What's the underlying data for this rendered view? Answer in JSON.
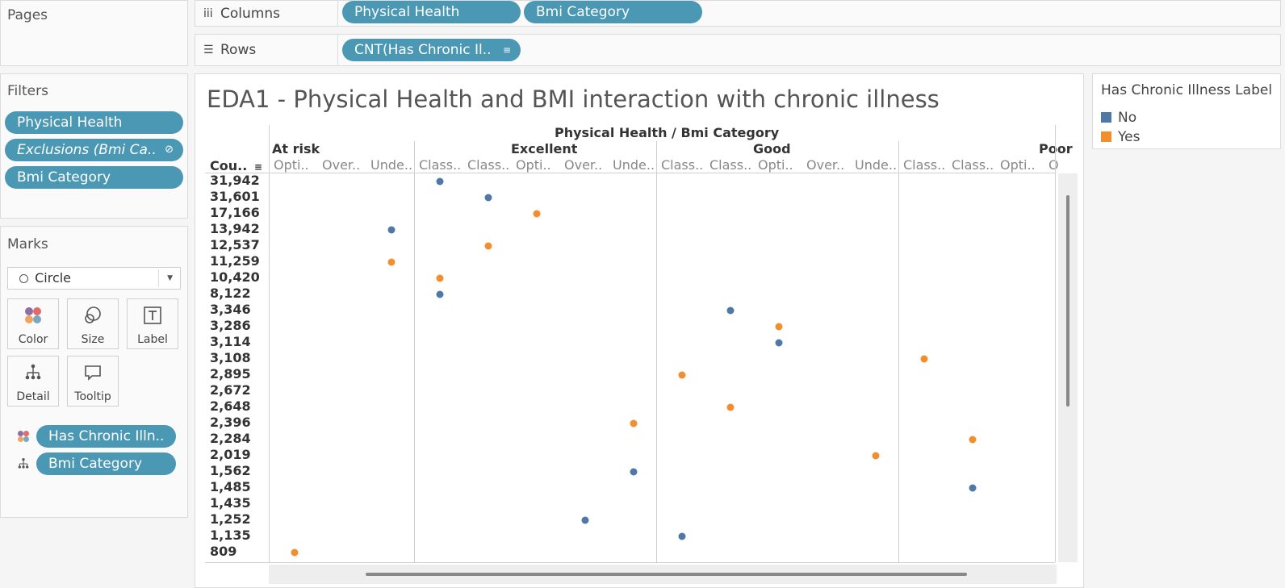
{
  "pages": {
    "title": "Pages"
  },
  "columns": {
    "label": "Columns",
    "pills": [
      "Physical Health",
      "Bmi Category"
    ]
  },
  "rows": {
    "label": "Rows",
    "pill": "CNT(Has Chronic Il.."
  },
  "filters": {
    "title": "Filters",
    "pills": [
      "Physical Health",
      "Exclusions (Bmi Ca..",
      "Bmi Category"
    ]
  },
  "marks": {
    "title": "Marks",
    "type": "Circle",
    "cards": [
      "Color",
      "Size",
      "Label",
      "Detail",
      "Tooltip"
    ],
    "pills": [
      "Has Chronic Illn..",
      "Bmi Category"
    ]
  },
  "legend": {
    "title": "Has Chronic Illness Label",
    "items": [
      {
        "label": "No",
        "color": "#4e79a7"
      },
      {
        "label": "Yes",
        "color": "#f28e2b"
      }
    ]
  },
  "chart_data": {
    "type": "scatter",
    "title": "EDA1 - Physical Health and BMI interaction with chronic illness",
    "column_header": "Physical Health  /  Bmi Category",
    "y_header": "Cou..",
    "groups": [
      {
        "name": "At risk",
        "subs": [
          "Opti..",
          "Over..",
          "Unde.."
        ]
      },
      {
        "name": "Excellent",
        "subs": [
          "Class..",
          "Class..",
          "Opti..",
          "Over..",
          "Unde.."
        ]
      },
      {
        "name": "Good",
        "subs": [
          "Class..",
          "Class..",
          "Opti..",
          "Over..",
          "Unde.."
        ]
      },
      {
        "name": "Poor",
        "subs": [
          "Class..",
          "Class..",
          "Opti..",
          "O"
        ]
      }
    ],
    "y_ticks": [
      "31,942",
      "31,601",
      "17,166",
      "13,942",
      "12,537",
      "11,259",
      "10,420",
      "8,122",
      "3,346",
      "3,286",
      "3,114",
      "3,108",
      "2,895",
      "2,672",
      "2,648",
      "2,396",
      "2,284",
      "2,019",
      "1,562",
      "1,485",
      "1,435",
      "1,252",
      "1,135",
      "809"
    ],
    "points": [
      {
        "col": 4,
        "y": "31,942",
        "label": "No"
      },
      {
        "col": 5,
        "y": "31,601",
        "label": "No"
      },
      {
        "col": 6,
        "y": "17,166",
        "label": "Yes"
      },
      {
        "col": 3,
        "y": "13,942",
        "label": "No"
      },
      {
        "col": 5,
        "y": "12,537",
        "label": "Yes"
      },
      {
        "col": 3,
        "y": "11,259",
        "label": "Yes"
      },
      {
        "col": 4,
        "y": "10,420",
        "label": "Yes"
      },
      {
        "col": 4,
        "y": "8,122",
        "label": "No"
      },
      {
        "col": 10,
        "y": "3,346",
        "label": "No"
      },
      {
        "col": 11,
        "y": "3,286",
        "label": "Yes"
      },
      {
        "col": 11,
        "y": "3,114",
        "label": "No"
      },
      {
        "col": 14,
        "y": "3,108",
        "label": "Yes"
      },
      {
        "col": 9,
        "y": "2,895",
        "label": "Yes"
      },
      {
        "col": 10,
        "y": "2,648",
        "label": "Yes"
      },
      {
        "col": 8,
        "y": "2,396",
        "label": "Yes"
      },
      {
        "col": 15,
        "y": "2,284",
        "label": "Yes"
      },
      {
        "col": 13,
        "y": "2,019",
        "label": "Yes"
      },
      {
        "col": 8,
        "y": "1,562",
        "label": "No"
      },
      {
        "col": 15,
        "y": "1,485",
        "label": "No"
      },
      {
        "col": 7,
        "y": "1,252",
        "label": "No"
      },
      {
        "col": 9,
        "y": "1,135",
        "label": "No"
      },
      {
        "col": 1,
        "y": "809",
        "label": "Yes"
      }
    ]
  }
}
